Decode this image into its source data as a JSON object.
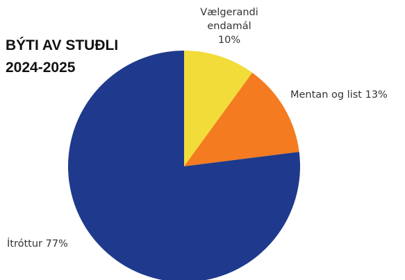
{
  "chart_data": {
    "type": "pie",
    "title": "BÝTI AV STUÐLI",
    "subtitle": "2024-2025",
    "categories": [
      "Vælgerandi endamál",
      "Mentan og list",
      "Ítróttur"
    ],
    "values": [
      10,
      13,
      77
    ],
    "value_labels": [
      "10%",
      "13%",
      "77%"
    ],
    "colors": [
      "#f2dc3a",
      "#f47b20",
      "#1f3a8c"
    ]
  }
}
